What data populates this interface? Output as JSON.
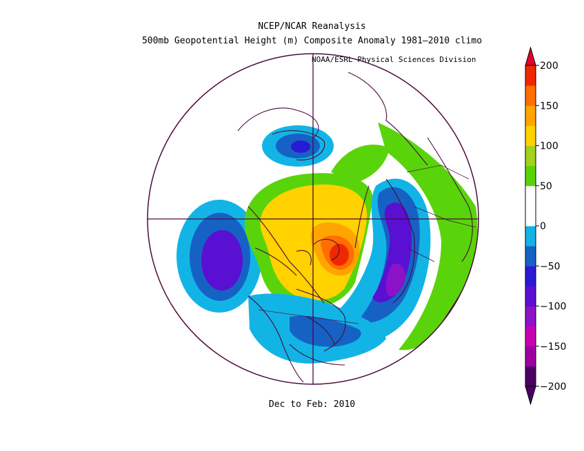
{
  "title_line1": "NCEP/NCAR Reanalysis",
  "title_line2": "500mb Geopotential Height (m) Composite Anomaly 1981–2010 climo",
  "credit": "NOAA/ESRL Physical Sciences Division",
  "subtitle": "Dec to Feb: 2010",
  "colorbar": {
    "levels": [
      -200,
      -175,
      -150,
      -125,
      -100,
      -75,
      -50,
      -25,
      0,
      25,
      50,
      75,
      100,
      125,
      150,
      175,
      200
    ],
    "colors": [
      "#4b0064",
      "#9c009e",
      "#c800b4",
      "#8c12c8",
      "#5a10d2",
      "#2a1ad6",
      "#1662c4",
      "#12b4e6",
      "#ffffff",
      "#ffffff",
      "#5ad40a",
      "#a0d21e",
      "#ffd200",
      "#ffa400",
      "#ff6e00",
      "#f02800"
    ],
    "under_color": "#4b0064",
    "over_color": "#e4002c",
    "tick_labels": [
      "200",
      "150",
      "100",
      "50",
      "0",
      "−50",
      "−100",
      "−150",
      "−200"
    ]
  }
}
